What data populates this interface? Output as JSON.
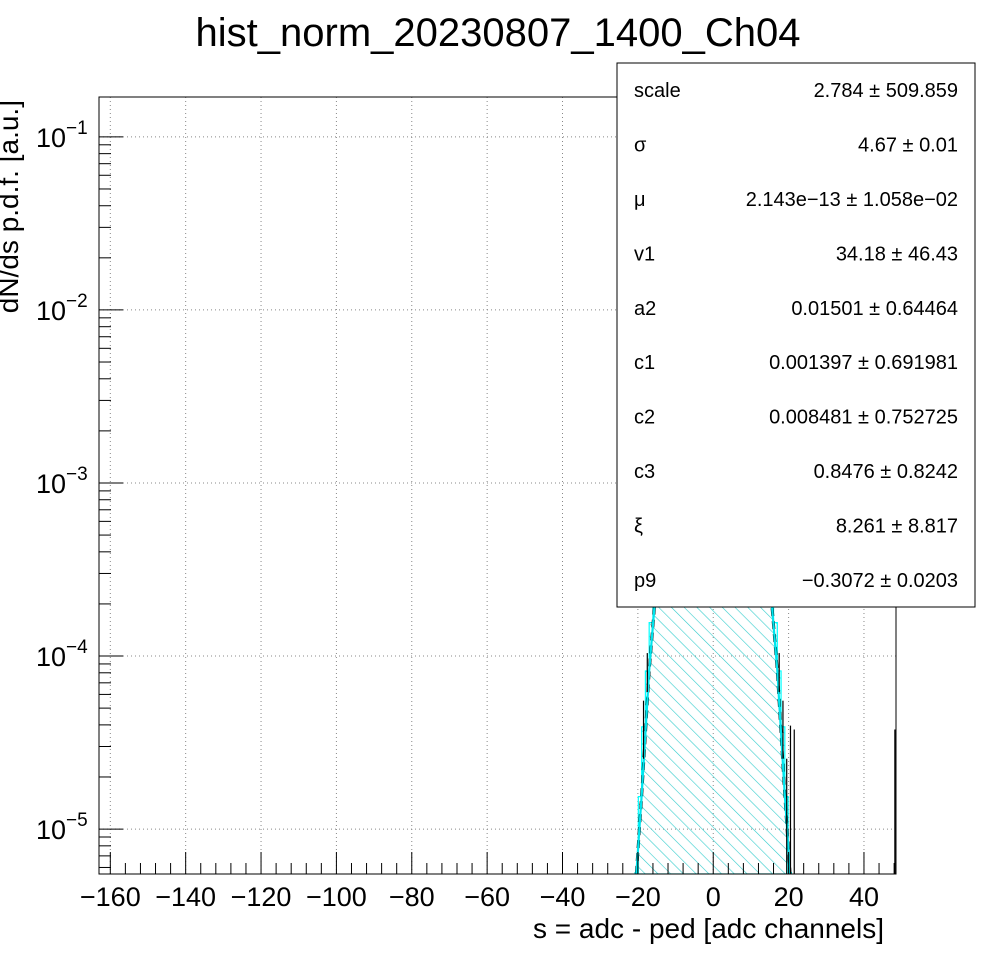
{
  "chart_data": {
    "type": "line",
    "title": "hist_norm_20230807_1400_Ch04",
    "xlabel": "s = adc - ped [adc channels]",
    "ylabel": "dN/ds p.d.f. [a.u.]",
    "xlim": [
      -163,
      48.5
    ],
    "ylim": [
      5.5e-06,
      0.17
    ],
    "yscale": "log",
    "grid": true,
    "x_ticks": [
      -160,
      -140,
      -120,
      -100,
      -80,
      -60,
      -40,
      -20,
      0,
      20,
      40
    ],
    "x_tick_labels": [
      "−160",
      "−140",
      "−120",
      "−100",
      "−80",
      "−60",
      "−40",
      "−20",
      "0",
      "20",
      "40"
    ],
    "y_ticks": [
      {
        "value": 0.1,
        "mantissa": "10",
        "exponent": "−1"
      },
      {
        "value": 0.01,
        "mantissa": "10",
        "exponent": "−2"
      },
      {
        "value": 0.001,
        "mantissa": "10",
        "exponent": "−3"
      },
      {
        "value": 0.0001,
        "mantissa": "10",
        "exponent": "−4"
      },
      {
        "value": 1e-05,
        "mantissa": "10",
        "exponent": "−5"
      }
    ],
    "series": [
      {
        "style": "histogram",
        "color": "#00ffff",
        "fill": "hatched",
        "x": [
          -20.25,
          -19.5,
          -18.5,
          -17.5,
          -16.5,
          -15.5,
          -14.5,
          -13.5,
          -12.5,
          -11.5,
          -10.5,
          -9.5,
          -8.5,
          -7.5,
          -6.5,
          -5.5,
          -4.5,
          -3.5,
          -2.5,
          -1.5,
          -0.5,
          0.5,
          1.5,
          2.5,
          3.5,
          4.5,
          5.5,
          6.5,
          7.5,
          8.5,
          9.5,
          10.5,
          11.5,
          12.5,
          13.5,
          14.5,
          15.5,
          16.5,
          17.5,
          18.5,
          19.5,
          20.25
        ],
        "y": [
          5.6e-06,
          1.54e-05,
          3.9e-05,
          8.2e-05,
          0.000156,
          0.000275,
          0.000474,
          0.00089,
          0.00162,
          0.00278,
          0.0045,
          0.0069,
          0.0109,
          0.0163,
          0.0237,
          0.0332,
          0.0445,
          0.0568,
          0.0694,
          0.0804,
          0.0855,
          0.0855,
          0.0804,
          0.0694,
          0.0568,
          0.0445,
          0.0332,
          0.0237,
          0.0163,
          0.0109,
          0.0069,
          0.0045,
          0.00278,
          0.00162,
          0.00089,
          0.000474,
          0.000275,
          0.000156,
          8.2e-05,
          3.9e-05,
          1.54e-05,
          5.6e-06
        ]
      },
      {
        "style": "fit-line",
        "color": "#00e5ee",
        "x": [
          -20.4,
          -19,
          -18,
          -17,
          -16,
          -15,
          -14,
          -13,
          -12,
          -11,
          -10,
          -9,
          -8,
          -7,
          -6,
          -5,
          -4,
          -3,
          -2,
          -1,
          0,
          1,
          2,
          3,
          4,
          5,
          6,
          7,
          8,
          9,
          10,
          11,
          12,
          13,
          14,
          15,
          16,
          17,
          18,
          19,
          20.4
        ],
        "y": [
          5.5e-06,
          1.56e-05,
          3.57e-05,
          8.23e-05,
          0.000151,
          0.000276,
          0.000502,
          0.000898,
          0.00158,
          0.00272,
          0.00446,
          0.0071,
          0.011,
          0.0164,
          0.0237,
          0.0332,
          0.0445,
          0.0568,
          0.0694,
          0.0804,
          0.0855,
          0.0804,
          0.0694,
          0.0568,
          0.0445,
          0.0332,
          0.0237,
          0.0164,
          0.011,
          0.0071,
          0.00446,
          0.00272,
          0.00158,
          0.000898,
          0.000502,
          0.000276,
          0.000151,
          8.23e-05,
          3.57e-05,
          1.56e-05,
          5.5e-06
        ]
      },
      {
        "style": "error-bars",
        "color": "#000000",
        "points": [
          {
            "x": -18.5,
            "low": 2.55e-05,
            "high": 5.52e-05
          },
          {
            "x": -17.5,
            "low": 6.2e-05,
            "high": 0.000104
          },
          {
            "x": 17.5,
            "low": 6.2e-05,
            "high": 0.000104
          },
          {
            "x": 18.5,
            "low": 2.55e-05,
            "high": 5.52e-05
          },
          {
            "x": 19.5,
            "low": 5.5e-06,
            "high": 2.55e-05
          },
          {
            "x": 20.5,
            "low": 5.5e-06,
            "high": 3.96e-05
          },
          {
            "x": 21.5,
            "low": 5.5e-06,
            "high": 3.76e-05
          },
          {
            "x": 48.2,
            "low": 5.5e-06,
            "high": 3.76e-05
          }
        ]
      }
    ],
    "stats_box": {
      "entries": [
        {
          "name": "scale",
          "value": "2.784 ± 509.859"
        },
        {
          "name": "σ",
          "value": "4.67 ± 0.01"
        },
        {
          "name": "μ",
          "value": "2.143e−13 ± 1.058e−02"
        },
        {
          "name": "v1",
          "value": "34.18 ± 46.43"
        },
        {
          "name": "a2",
          "value": "0.01501 ± 0.64464"
        },
        {
          "name": "c1",
          "value": "0.001397 ± 0.691981"
        },
        {
          "name": "c2",
          "value": "0.008481 ± 0.752725"
        },
        {
          "name": "c3",
          "value": "0.8476 ± 0.8242"
        },
        {
          "name": "ξ",
          "value": "8.261 ± 8.817"
        },
        {
          "name": "p9",
          "value": "−0.3072 ± 0.0203"
        }
      ]
    }
  }
}
